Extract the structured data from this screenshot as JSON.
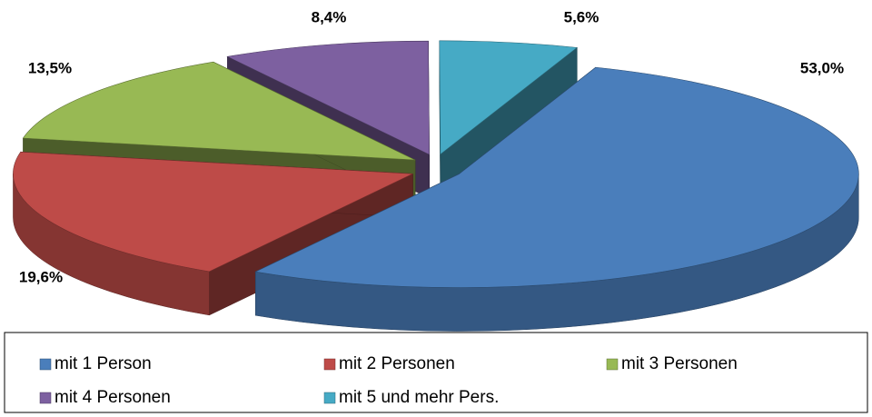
{
  "chart_data": {
    "type": "pie3d",
    "categories": [
      "mit 1 Person",
      "mit 2 Personen",
      "mit 3 Personen",
      "mit 4 Personen",
      "mit 5 und mehr Pers."
    ],
    "values": [
      53.0,
      19.6,
      13.5,
      8.4,
      5.6
    ],
    "value_labels": [
      "53,0%",
      "19,6%",
      "13,5%",
      "8,4%",
      "5,6%"
    ],
    "colors": [
      "#4a7ebb",
      "#be4b48",
      "#98b954",
      "#7d60a0",
      "#46aac5"
    ],
    "legend": "bottom"
  }
}
